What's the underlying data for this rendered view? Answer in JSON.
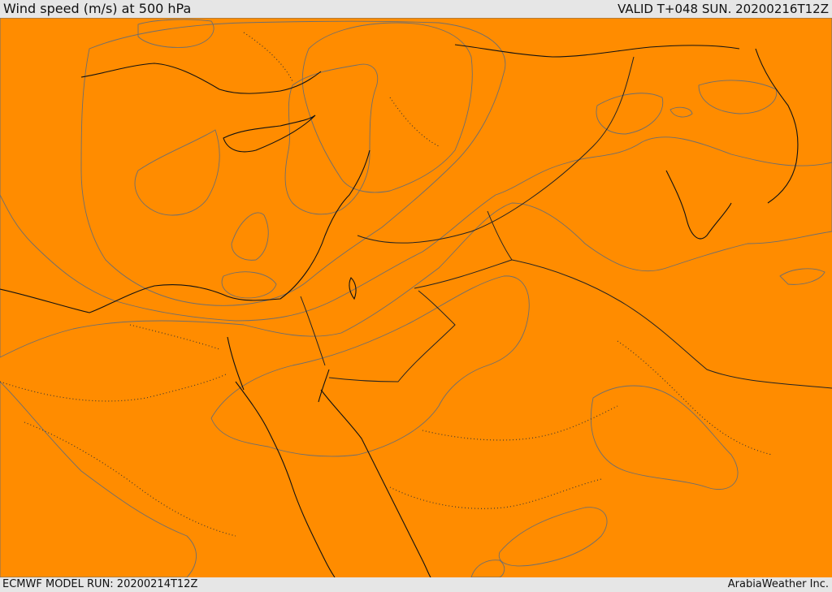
{
  "header": {
    "title": "Wind speed (m/s) at 500 hPa",
    "valid": "VALID T+048 SUN. 20200216T12Z"
  },
  "footer": {
    "model_run": "ECMWF MODEL RUN: 20200214T12Z",
    "credit": "ArabiaWeather Inc."
  },
  "colors": {
    "band_0": "#ffffff",
    "band_1": "#fddea8",
    "band_2": "#ffff00",
    "band_3": "#ffd800",
    "band_4": "#ffb400",
    "band_5": "#ff8c00",
    "band_6": "#ff6400",
    "band_7": "#ff5a00",
    "background": "#e6e6e6"
  }
}
